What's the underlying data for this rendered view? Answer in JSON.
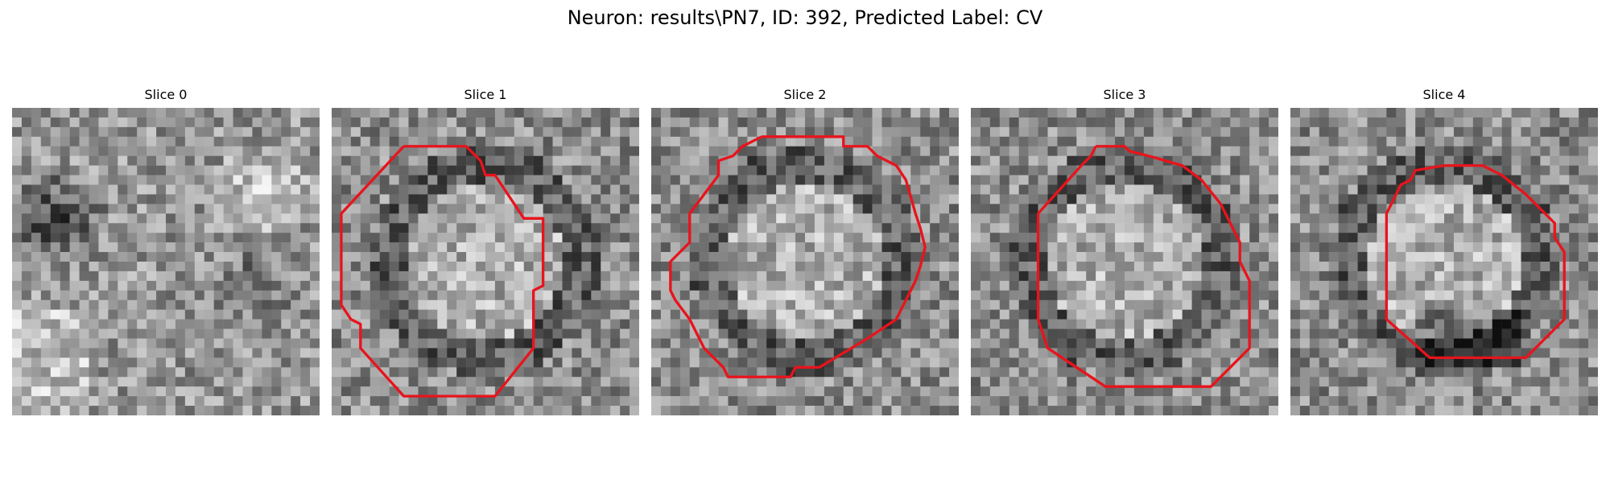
{
  "figure": {
    "title": "Neuron: results\\PN7, ID: 392, Predicted Label: CV",
    "contour_color": "#e8141c"
  },
  "slices": [
    {
      "label": "Slice 0"
    },
    {
      "label": "Slice 1"
    },
    {
      "label": "Slice 2"
    },
    {
      "label": "Slice 3"
    },
    {
      "label": "Slice 4"
    }
  ]
}
